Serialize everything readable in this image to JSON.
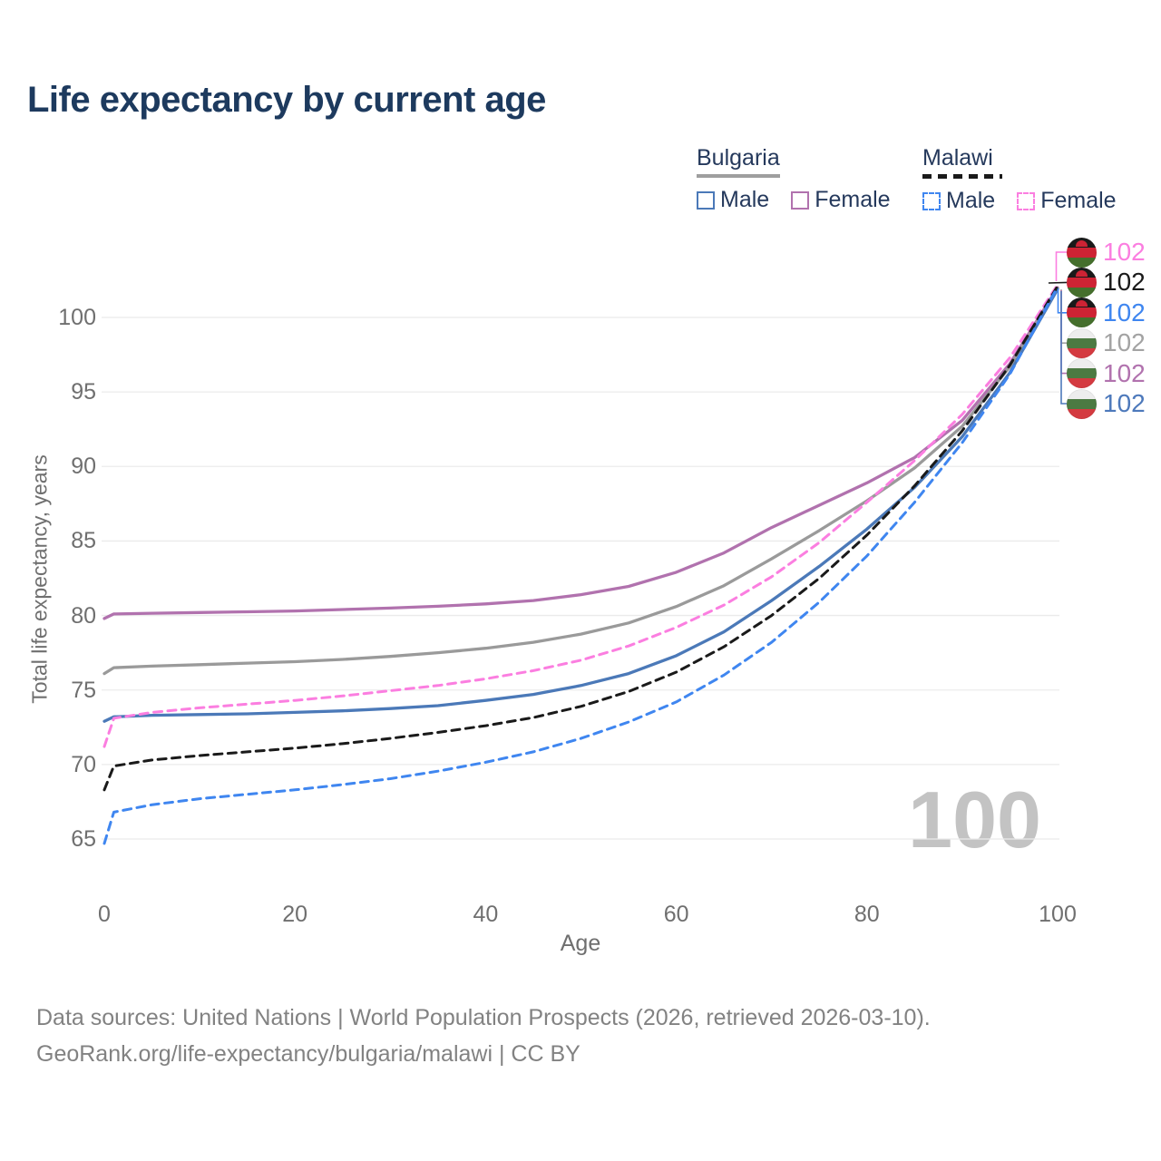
{
  "title": "Life expectancy by current age",
  "legend": {
    "groups": [
      {
        "country": "Bulgaria",
        "line_style": "solid",
        "swatch_color": "#9e9e9e",
        "items": [
          {
            "label": "Male",
            "color": "#4b79b8"
          },
          {
            "label": "Female",
            "color": "#b172ae"
          }
        ]
      },
      {
        "country": "Malawi",
        "line_style": "dashed",
        "swatch_color": "#1a1a1a",
        "items": [
          {
            "label": "Male",
            "color": "#3f86f0"
          },
          {
            "label": "Female",
            "color": "#fb7ee0"
          }
        ]
      }
    ]
  },
  "watermark": "100",
  "footer": {
    "line1": "Data sources: United Nations | World Population Prospects (2026, retrieved 2026-03-10).",
    "line2": "GeoRank.org/life-expectancy/bulgaria/malawi | CC BY"
  },
  "colors": {
    "title_text": "#1d3a5e",
    "legend_text": "#25395c",
    "axis_text": "#6f6f6f",
    "gridline": "#ebebeb",
    "watermark": "#c3c3c3",
    "footer_text": "#828282",
    "flag_malawi_bands": [
      "#1a1a1a",
      "#ce2334",
      "#456f2c"
    ],
    "flag_malawi_sun": "#ce2334",
    "flag_bulgaria_bands": [
      "#ededed",
      "#4c7a42",
      "#d43a40"
    ]
  },
  "chart_data": {
    "type": "line",
    "title": "Life expectancy by current age",
    "xlabel": "Age",
    "ylabel": "Total life expectancy, years",
    "xlim": [
      0,
      100
    ],
    "ylim": [
      63,
      103
    ],
    "x_ticks": [
      0,
      20,
      40,
      60,
      80,
      100
    ],
    "y_ticks": [
      65,
      70,
      75,
      80,
      85,
      90,
      95,
      100
    ],
    "grid": "horizontal",
    "legend_position": "top-right",
    "series": [
      {
        "id": "bulgaria-female",
        "name": "Bulgaria Female",
        "color": "#b172ae",
        "dashed": false,
        "points": [
          [
            0,
            79.8
          ],
          [
            1,
            80.1
          ],
          [
            5,
            80.15
          ],
          [
            10,
            80.2
          ],
          [
            15,
            80.25
          ],
          [
            20,
            80.3
          ],
          [
            25,
            80.4
          ],
          [
            30,
            80.5
          ],
          [
            35,
            80.62
          ],
          [
            40,
            80.78
          ],
          [
            45,
            81.0
          ],
          [
            50,
            81.4
          ],
          [
            55,
            81.95
          ],
          [
            60,
            82.9
          ],
          [
            65,
            84.2
          ],
          [
            70,
            85.9
          ],
          [
            75,
            87.4
          ],
          [
            80,
            88.9
          ],
          [
            85,
            90.6
          ],
          [
            90,
            93.1
          ],
          [
            95,
            96.9
          ],
          [
            100,
            102.0
          ]
        ]
      },
      {
        "id": "bulgaria-all",
        "name": "Bulgaria",
        "color": "#9a9a9a",
        "dashed": false,
        "points": [
          [
            0,
            76.1
          ],
          [
            1,
            76.5
          ],
          [
            5,
            76.6
          ],
          [
            10,
            76.7
          ],
          [
            15,
            76.8
          ],
          [
            20,
            76.9
          ],
          [
            25,
            77.05
          ],
          [
            30,
            77.25
          ],
          [
            35,
            77.5
          ],
          [
            40,
            77.8
          ],
          [
            45,
            78.2
          ],
          [
            50,
            78.75
          ],
          [
            55,
            79.5
          ],
          [
            60,
            80.6
          ],
          [
            65,
            82.0
          ],
          [
            70,
            83.8
          ],
          [
            75,
            85.7
          ],
          [
            80,
            87.7
          ],
          [
            85,
            89.9
          ],
          [
            90,
            92.7
          ],
          [
            95,
            96.7
          ],
          [
            100,
            101.95
          ]
        ]
      },
      {
        "id": "bulgaria-male",
        "name": "Bulgaria Male",
        "color": "#4b79b8",
        "dashed": false,
        "points": [
          [
            0,
            72.9
          ],
          [
            1,
            73.2
          ],
          [
            5,
            73.3
          ],
          [
            10,
            73.35
          ],
          [
            15,
            73.4
          ],
          [
            20,
            73.5
          ],
          [
            25,
            73.6
          ],
          [
            30,
            73.75
          ],
          [
            35,
            73.95
          ],
          [
            40,
            74.3
          ],
          [
            45,
            74.7
          ],
          [
            50,
            75.3
          ],
          [
            55,
            76.1
          ],
          [
            60,
            77.3
          ],
          [
            65,
            78.9
          ],
          [
            70,
            81.0
          ],
          [
            75,
            83.3
          ],
          [
            80,
            85.8
          ],
          [
            85,
            88.6
          ],
          [
            90,
            92.0
          ],
          [
            95,
            96.3
          ],
          [
            100,
            101.9
          ]
        ]
      },
      {
        "id": "malawi-female",
        "name": "Malawi Female",
        "color": "#fb7ee0",
        "dashed": true,
        "points": [
          [
            0,
            71.2
          ],
          [
            1,
            73.1
          ],
          [
            5,
            73.5
          ],
          [
            10,
            73.8
          ],
          [
            15,
            74.05
          ],
          [
            20,
            74.3
          ],
          [
            25,
            74.6
          ],
          [
            30,
            74.95
          ],
          [
            35,
            75.3
          ],
          [
            40,
            75.75
          ],
          [
            45,
            76.3
          ],
          [
            50,
            77.0
          ],
          [
            55,
            77.95
          ],
          [
            60,
            79.2
          ],
          [
            65,
            80.7
          ],
          [
            70,
            82.6
          ],
          [
            75,
            84.9
          ],
          [
            80,
            87.6
          ],
          [
            85,
            90.4
          ],
          [
            90,
            93.5
          ],
          [
            95,
            97.3
          ],
          [
            100,
            102.2
          ]
        ]
      },
      {
        "id": "malawi-all",
        "name": "Malawi",
        "color": "#1a1a1a",
        "dashed": true,
        "points": [
          [
            0,
            68.3
          ],
          [
            1,
            69.9
          ],
          [
            5,
            70.3
          ],
          [
            10,
            70.6
          ],
          [
            15,
            70.85
          ],
          [
            20,
            71.1
          ],
          [
            25,
            71.4
          ],
          [
            30,
            71.75
          ],
          [
            35,
            72.15
          ],
          [
            40,
            72.6
          ],
          [
            45,
            73.15
          ],
          [
            50,
            73.9
          ],
          [
            55,
            74.9
          ],
          [
            60,
            76.2
          ],
          [
            65,
            77.9
          ],
          [
            70,
            80.0
          ],
          [
            75,
            82.5
          ],
          [
            80,
            85.4
          ],
          [
            85,
            88.7
          ],
          [
            90,
            92.4
          ],
          [
            95,
            96.8
          ],
          [
            100,
            102.1
          ]
        ]
      },
      {
        "id": "malawi-male",
        "name": "Malawi Male",
        "color": "#3f86f0",
        "dashed": true,
        "points": [
          [
            0,
            64.7
          ],
          [
            1,
            66.8
          ],
          [
            5,
            67.3
          ],
          [
            10,
            67.7
          ],
          [
            15,
            68.0
          ],
          [
            20,
            68.3
          ],
          [
            25,
            68.65
          ],
          [
            30,
            69.05
          ],
          [
            35,
            69.55
          ],
          [
            40,
            70.15
          ],
          [
            45,
            70.85
          ],
          [
            50,
            71.75
          ],
          [
            55,
            72.85
          ],
          [
            60,
            74.2
          ],
          [
            65,
            76.0
          ],
          [
            70,
            78.2
          ],
          [
            75,
            80.9
          ],
          [
            80,
            84.0
          ],
          [
            85,
            87.6
          ],
          [
            90,
            91.6
          ],
          [
            95,
            96.2
          ],
          [
            100,
            102.05
          ]
        ]
      }
    ],
    "end_labels": [
      {
        "series_id": "malawi-female",
        "value": "102",
        "color": "#fb7ee0",
        "flag": "malawi"
      },
      {
        "series_id": "malawi-all",
        "value": "102",
        "color": "#1a1a1a",
        "flag": "malawi"
      },
      {
        "series_id": "malawi-male",
        "value": "102",
        "color": "#3f86f0",
        "flag": "malawi"
      },
      {
        "series_id": "bulgaria-all",
        "value": "102",
        "color": "#a3a3a3",
        "flag": "bulgaria"
      },
      {
        "series_id": "bulgaria-female",
        "value": "102",
        "color": "#b172ae",
        "flag": "bulgaria"
      },
      {
        "series_id": "bulgaria-male",
        "value": "102",
        "color": "#4d79bb",
        "flag": "bulgaria"
      }
    ]
  }
}
